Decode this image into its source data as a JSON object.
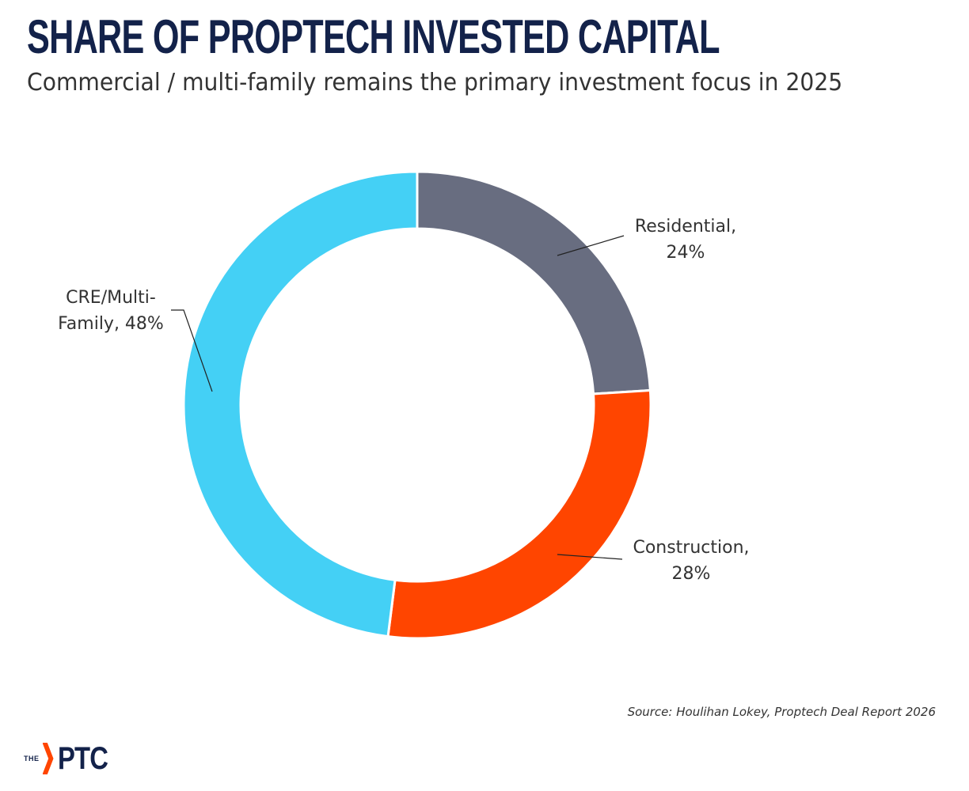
{
  "header": {
    "title": "SHARE OF PROPTECH INVESTED CAPITAL",
    "subtitle": "Commercial / multi-family remains the primary investment focus in 2025"
  },
  "chart_data": {
    "type": "pie",
    "variant": "donut",
    "title": "SHARE OF PROPTECH INVESTED CAPITAL",
    "subtitle": "Commercial / multi-family remains the primary investment focus in 2025",
    "unit": "%",
    "slices": [
      {
        "name": "Residential",
        "value": 24,
        "color": "#686d80",
        "label_line1": "Residential,",
        "label_line2": "24%"
      },
      {
        "name": "Construction",
        "value": 28,
        "color": "#ff4500",
        "label_line1": "Construction,",
        "label_line2": "28%"
      },
      {
        "name": "CRE/Multi-Family",
        "value": 48,
        "color": "#44d0f5",
        "label_line1": "CRE/Multi-",
        "label_line2": "Family, 48%"
      }
    ]
  },
  "footer": {
    "source": "Source: Houlihan Lokey, Proptech Deal Report 2026",
    "logo_prefix": "THE",
    "logo_text": "PTC"
  },
  "colors": {
    "title": "#13224a",
    "accent": "#ff4500"
  }
}
